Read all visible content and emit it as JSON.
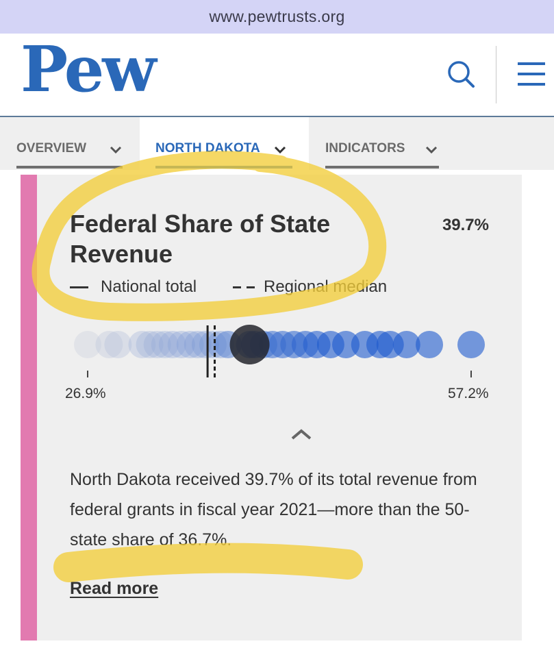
{
  "browser": {
    "url": "www.pewtrusts.org"
  },
  "header": {
    "logo_text": "Pew",
    "brand_color": "#2a68b8",
    "icons": [
      "search-icon",
      "menu-icon"
    ]
  },
  "tabs": [
    {
      "label": "OVERVIEW",
      "active": false
    },
    {
      "label": "NORTH DAKOTA",
      "active": true
    },
    {
      "label": "INDICATORS",
      "active": false
    }
  ],
  "card": {
    "accent_color": "#e27ab0",
    "title": "Federal Share of State Revenue",
    "value": "39.7%",
    "legend": {
      "national": "National total",
      "regional": "Regional median"
    },
    "chart_data": {
      "type": "scatter",
      "xlim": [
        26.9,
        57.2
      ],
      "axis_min_label": "26.9%",
      "axis_max_label": "57.2%",
      "national_total": 36.7,
      "regional_median": 37.1,
      "highlight_state_value": 39.7,
      "state_values": [
        26.9,
        28.6,
        29.3,
        31.2,
        31.8,
        32.4,
        33.0,
        33.6,
        34.3,
        35.0,
        35.6,
        36.2,
        36.8,
        37.4,
        38.0,
        39.7,
        40.1,
        40.8,
        41.5,
        42.3,
        43.2,
        44.1,
        45.0,
        46.1,
        47.3,
        48.8,
        50.0,
        50.8,
        52.1,
        53.9,
        57.2
      ]
    },
    "summary": "North Dakota received 39.7% of its total revenue from federal grants in fiscal year 2021—more than the 50-state share of 36.7%.",
    "read_more": "Read more"
  }
}
